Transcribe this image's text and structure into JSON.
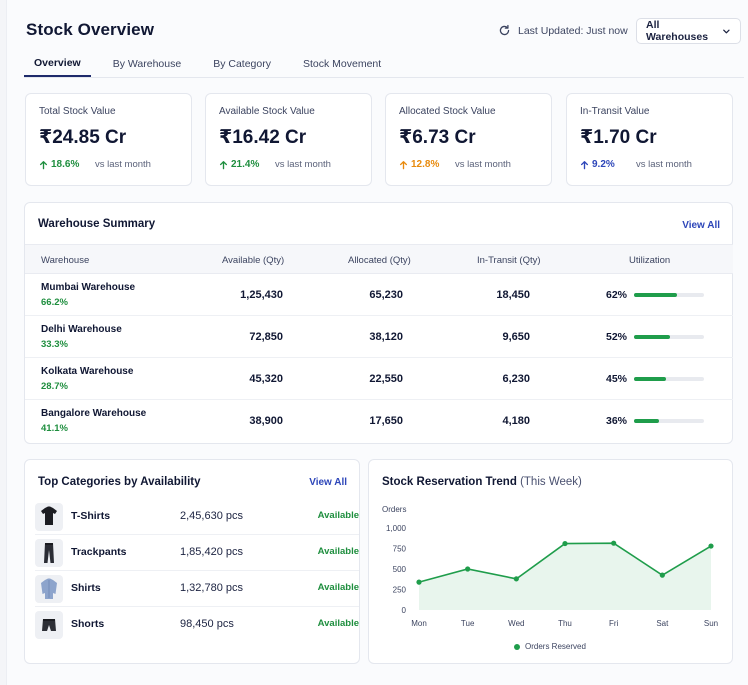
{
  "header": {
    "title": "Stock Overview",
    "last_updated": "Last Updated: Just now",
    "warehouse_select": "All Warehouses"
  },
  "tabs": [
    {
      "label": "Overview",
      "active": true
    },
    {
      "label": "By Warehouse",
      "active": false
    },
    {
      "label": "By Category",
      "active": false
    },
    {
      "label": "Stock Movement",
      "active": false
    }
  ],
  "kpis": [
    {
      "label": "Total Stock Value",
      "value": "₹24.85 Cr",
      "change": "18.6%",
      "color": "#1e8e3e",
      "vs": "vs last month"
    },
    {
      "label": "Available Stock Value",
      "value": "₹16.42 Cr",
      "change": "21.4%",
      "color": "#1e8e3e",
      "vs": "vs last month"
    },
    {
      "label": "Allocated Stock Value",
      "value": "₹6.73 Cr",
      "change": "12.8%",
      "color": "#e88a0c",
      "vs": "vs last month"
    },
    {
      "label": "In-Transit Value",
      "value": "₹1.70 Cr",
      "change": "9.2%",
      "color": "#2d46b9",
      "vs": "vs last month"
    }
  ],
  "warehouse_summary": {
    "title": "Warehouse Summary",
    "view_all": "View All",
    "columns": [
      "Warehouse",
      "Available (Qty)",
      "Allocated (Qty)",
      "In-Transit (Qty)",
      "Utilization"
    ],
    "rows": [
      {
        "name": "Mumbai Warehouse",
        "pct": "66.2%",
        "available": "1,25,430",
        "allocated": "65,230",
        "in_transit": "18,450",
        "utilization": "62%",
        "util_value": 62
      },
      {
        "name": "Delhi Warehouse",
        "pct": "33.3%",
        "available": "72,850",
        "allocated": "38,120",
        "in_transit": "9,650",
        "utilization": "52%",
        "util_value": 52
      },
      {
        "name": "Kolkata Warehouse",
        "pct": "28.7%",
        "available": "45,320",
        "allocated": "22,550",
        "in_transit": "6,230",
        "utilization": "45%",
        "util_value": 45
      },
      {
        "name": "Bangalore Warehouse",
        "pct": "41.1%",
        "available": "38,900",
        "allocated": "17,650",
        "in_transit": "4,180",
        "utilization": "36%",
        "util_value": 36
      }
    ]
  },
  "top_categories": {
    "title": "Top Categories by Availability",
    "view_all": "View All",
    "items": [
      {
        "name": "T-Shirts",
        "qty": "2,45,630 pcs",
        "status": "Available",
        "icon": "tshirt-icon"
      },
      {
        "name": "Trackpants",
        "qty": "1,85,420 pcs",
        "status": "Available",
        "icon": "trackpants-icon"
      },
      {
        "name": "Shirts",
        "qty": "1,32,780 pcs",
        "status": "Available",
        "icon": "shirt-icon"
      },
      {
        "name": "Shorts",
        "qty": "98,450 pcs",
        "status": "Available",
        "icon": "shorts-icon"
      }
    ]
  },
  "reservation_trend": {
    "title": "Stock Reservation Trend",
    "subtitle": "(This Week)"
  },
  "chart_data": {
    "type": "area",
    "title": "Stock Reservation Trend",
    "subtitle": "(This Week)",
    "ylabel": "Orders",
    "xlabel": "",
    "categories": [
      "Mon",
      "Tue",
      "Wed",
      "Thu",
      "Fri",
      "Sat",
      "Sun"
    ],
    "series": [
      {
        "name": "Orders Reserved",
        "values": [
          340,
          500,
          380,
          810,
          815,
          425,
          780
        ],
        "color": "#1f9d4b"
      }
    ],
    "ylim": [
      0,
      1000
    ],
    "yticks": [
      "0",
      "250",
      "500",
      "750",
      "1,000"
    ],
    "grid": false,
    "legend": "bottom"
  }
}
